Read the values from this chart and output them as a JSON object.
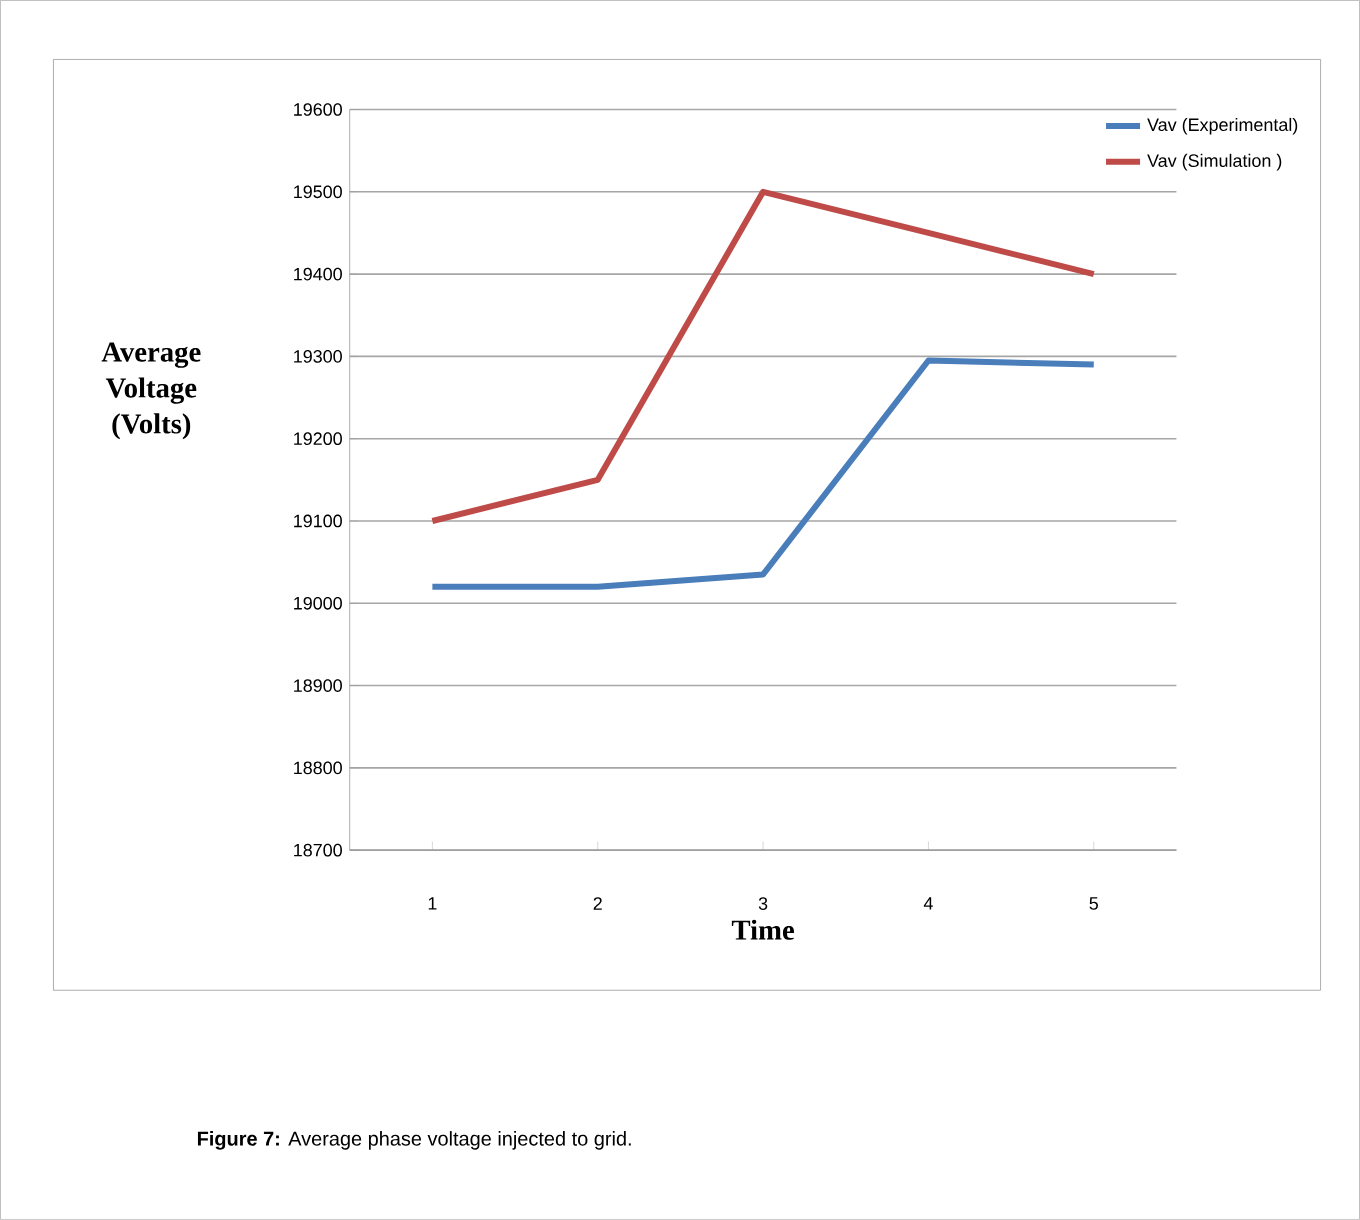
{
  "chart_data": {
    "type": "line",
    "xlabel": "Time",
    "ylabel": "Average Voltage (Volts)",
    "categories": [
      "1",
      "2",
      "3",
      "4",
      "5"
    ],
    "series": [
      {
        "name": "Vav (Experimental)",
        "color": "#4a7ebb",
        "values": [
          19020,
          19020,
          19035,
          19295,
          19290
        ]
      },
      {
        "name": "Vav (Simulation )",
        "color": "#be4b48",
        "values": [
          19100,
          19150,
          19500,
          19450,
          19400
        ]
      }
    ],
    "ylim": [
      18700,
      19600
    ],
    "yticks": [
      18700,
      18800,
      18900,
      19000,
      19100,
      19200,
      19300,
      19400,
      19500,
      19600
    ],
    "grid": "y",
    "legend": "top right",
    "marker": "none",
    "line_style": "solid",
    "annotations": [
      "**Figure 7:** Average phase voltage injected to grid."
    ]
  }
}
